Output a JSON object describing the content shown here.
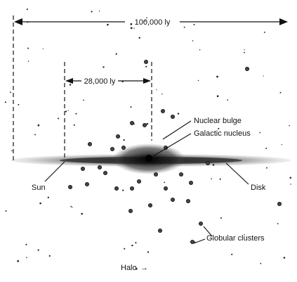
{
  "dimensions": {
    "galaxy_diameter": "100,000 ly",
    "bulge_diameter": "28,000 ly"
  },
  "labels": {
    "nuclear_bulge": "Nuclear bulge",
    "galactic_nucleus": "Galactic nucleus",
    "sun": "Sun",
    "disk": "Disk",
    "globular_clusters": "Globular clusters",
    "halo": "Halo"
  }
}
